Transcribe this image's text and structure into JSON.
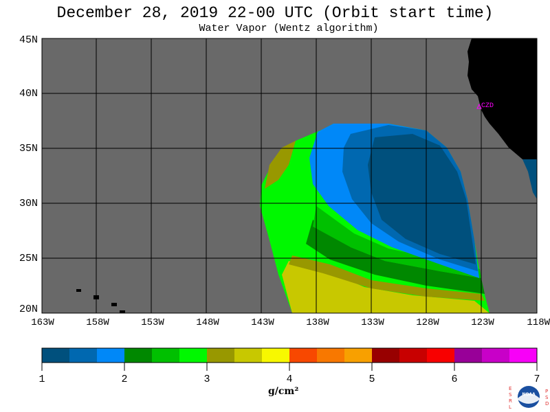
{
  "title": "December 28, 2019  22-00 UTC  (Orbit start time)",
  "subtitle": "Water Vapor (Wentz algorithm)",
  "lat_labels": [
    "45N",
    "40N",
    "35N",
    "30N",
    "25N",
    "20N"
  ],
  "lon_labels": [
    "163W",
    "158W",
    "153W",
    "148W",
    "143W",
    "138W",
    "133W",
    "128W",
    "123W",
    "118W"
  ],
  "station_label": "CZD",
  "colorbar": {
    "ticks": [
      "1",
      "2",
      "3",
      "4",
      "5",
      "6",
      "7"
    ],
    "unit": "g/cm²",
    "colors": [
      "#00507d",
      "#0068b0",
      "#0088f8",
      "#008800",
      "#00c000",
      "#00f800",
      "#989800",
      "#c8c800",
      "#f8f800",
      "#f84800",
      "#f87800",
      "#f8a000",
      "#980000",
      "#c80000",
      "#f80000",
      "#980098",
      "#c800c8",
      "#f800f8"
    ]
  },
  "map_colors": {
    "nodata": "#696969",
    "land": "#000000",
    "grid": "#000000"
  },
  "logo": {
    "left_letters": "ESRL",
    "right_letters": "PSD",
    "center": "NOAA"
  }
}
